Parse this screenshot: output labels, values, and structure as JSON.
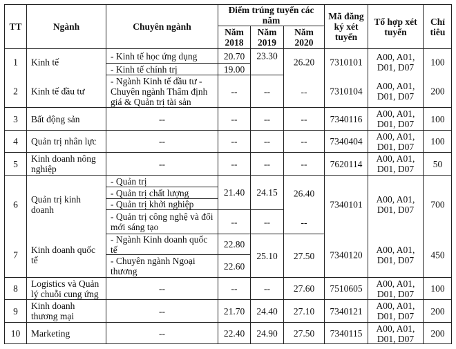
{
  "header": {
    "tt": "TT",
    "nganh": "Ngành",
    "chuyen_nganh": "Chuyên ngành",
    "diem_title": "Điểm trúng tuyển các năm",
    "years": [
      "Năm 2018",
      "Năm 2019",
      "Năm 2020"
    ],
    "ma": "Mã đăng ký xét tuyển",
    "to_hop": "Tổ hợp xét tuyển",
    "chi_tieu": "Chỉ tiêu"
  },
  "rows": [
    {
      "tt": "1",
      "nganh": "Kinh tế",
      "chuyen_nganh": [
        "- Kinh tế học ứng dụng",
        "- Kinh tế chính trị"
      ],
      "diem_2018": [
        "20.70",
        "19.00"
      ],
      "diem_2019": [
        "23.30"
      ],
      "diem_2020": [
        "26.20"
      ],
      "ma": "7310101",
      "to_hop": "A00, A01, D01, D07",
      "chi_tieu": "100"
    },
    {
      "tt": "2",
      "nganh": "Kinh tế đầu tư",
      "chuyen_nganh": [
        "- Ngành Kinh tế đầu tư - Chuyên ngành Thẩm định giá & Quản trị tài sản"
      ],
      "diem_2018": [
        "--"
      ],
      "diem_2019": [
        "--"
      ],
      "diem_2020": [
        "--"
      ],
      "ma": "7310104",
      "to_hop": "A00, A01, D01, D07",
      "chi_tieu": "200"
    },
    {
      "tt": "3",
      "nganh": "Bất động sản",
      "chuyen_nganh": [
        "--"
      ],
      "diem_2018": [
        "--"
      ],
      "diem_2019": [
        "--"
      ],
      "diem_2020": [
        "--"
      ],
      "ma": "7340116",
      "to_hop": "A00, A01, D01, D07",
      "chi_tieu": "100"
    },
    {
      "tt": "4",
      "nganh": "Quản trị nhân lực",
      "chuyen_nganh": [
        "--"
      ],
      "diem_2018": [
        "--"
      ],
      "diem_2019": [
        "--"
      ],
      "diem_2020": [
        "--"
      ],
      "ma": "7340404",
      "to_hop": "A00, A01, D01, D07",
      "chi_tieu": "100"
    },
    {
      "tt": "5",
      "nganh": "Kinh doanh nông nghiệp",
      "chuyen_nganh": [
        "--"
      ],
      "diem_2018": [
        "--"
      ],
      "diem_2019": [
        "--"
      ],
      "diem_2020": [
        "--"
      ],
      "ma": "7620114",
      "to_hop": "A00, A01, D01, D07",
      "chi_tieu": "50"
    },
    {
      "tt": "6",
      "nganh": "Quản trị kinh doanh",
      "chuyen_nganh": [
        "- Quản trị",
        "- Quản trị chất lượng",
        "- Quản trị khởi nghiệp",
        "- Quản trị công nghệ và đổi mới sáng tạo"
      ],
      "diem_2018": [
        "21.40",
        "--"
      ],
      "diem_2019": [
        "24.15",
        "--"
      ],
      "diem_2020": [
        "26.40",
        "--"
      ],
      "ma": "7340101",
      "to_hop": "A00, A01, D01, D07",
      "chi_tieu": "700"
    },
    {
      "tt": "7",
      "nganh": "Kinh doanh quốc tế",
      "chuyen_nganh": [
        "- Ngành Kinh doanh quốc tế",
        "- Chuyên ngành Ngoại thương"
      ],
      "diem_2018": [
        "22.80",
        "22.60"
      ],
      "diem_2019": [
        "25.10"
      ],
      "diem_2020": [
        "27.50"
      ],
      "ma": "7340120",
      "to_hop": "A00, A01, D01, D07",
      "chi_tieu": "450"
    },
    {
      "tt": "8",
      "nganh": "Logistics và Quản lý chuỗi cung ứng",
      "chuyen_nganh": [
        "--"
      ],
      "diem_2018": [
        "--"
      ],
      "diem_2019": [
        "--"
      ],
      "diem_2020": [
        "27.60"
      ],
      "ma": "7510605",
      "to_hop": "A00, A01, D01, D07",
      "chi_tieu": "100"
    },
    {
      "tt": "9",
      "nganh": "Kinh doanh thương mại",
      "chuyen_nganh": [
        "--"
      ],
      "diem_2018": [
        "21.70"
      ],
      "diem_2019": [
        "24.40"
      ],
      "diem_2020": [
        "27.10"
      ],
      "ma": "7340121",
      "to_hop": "A00, A01, D01, D07",
      "chi_tieu": "200"
    },
    {
      "tt": "10",
      "nganh": "Marketing",
      "chuyen_nganh": [
        "--"
      ],
      "diem_2018": [
        "22.40"
      ],
      "diem_2019": [
        "24.90"
      ],
      "diem_2020": [
        "27.50"
      ],
      "ma": "7340115",
      "to_hop": "A00, A01, D01, D07",
      "chi_tieu": "200"
    }
  ]
}
